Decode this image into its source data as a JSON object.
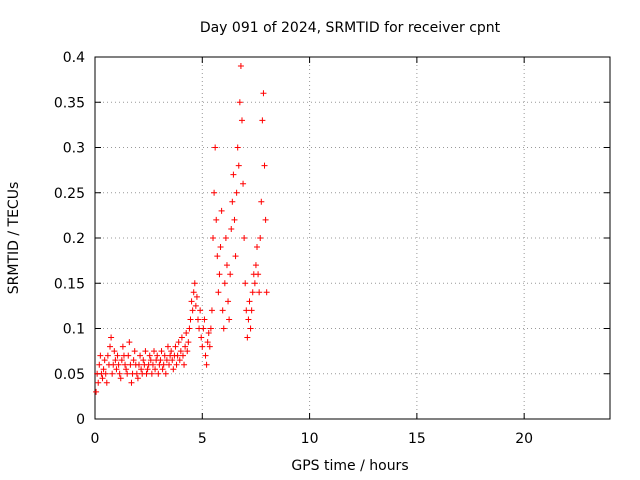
{
  "chart_data": {
    "type": "scatter",
    "title": "Day 091 of 2024, SRMTID for receiver cpnt",
    "xlabel": "GPS time / hours",
    "ylabel": "SRMTID / TECUs",
    "xlim": [
      0,
      24
    ],
    "ylim": [
      0,
      0.4
    ],
    "x_ticks": [
      0,
      5,
      10,
      15,
      20
    ],
    "x_tick_labels": [
      "0",
      "5",
      "10",
      "15",
      "20"
    ],
    "y_ticks": [
      0,
      0.05,
      0.1,
      0.15,
      0.2,
      0.25,
      0.3,
      0.35,
      0.4
    ],
    "y_tick_labels": [
      "0",
      "0.05",
      "0.1",
      "0.15",
      "0.2",
      "0.25",
      "0.3",
      "0.35",
      "0.4"
    ],
    "grid": true,
    "marker": "+",
    "color": "#ff0000",
    "series": [
      {
        "points": [
          [
            0.05,
            0.03
          ],
          [
            0.1,
            0.05
          ],
          [
            0.15,
            0.04
          ],
          [
            0.2,
            0.06
          ],
          [
            0.25,
            0.07
          ],
          [
            0.3,
            0.05
          ],
          [
            0.35,
            0.045
          ],
          [
            0.4,
            0.055
          ],
          [
            0.45,
            0.065
          ],
          [
            0.5,
            0.05
          ],
          [
            0.55,
            0.04
          ],
          [
            0.6,
            0.07
          ],
          [
            0.65,
            0.06
          ],
          [
            0.7,
            0.08
          ],
          [
            0.75,
            0.09
          ],
          [
            0.8,
            0.05
          ],
          [
            0.85,
            0.06
          ],
          [
            0.9,
            0.075
          ],
          [
            0.95,
            0.065
          ],
          [
            1.0,
            0.055
          ],
          [
            1.05,
            0.07
          ],
          [
            1.1,
            0.06
          ],
          [
            1.15,
            0.05
          ],
          [
            1.2,
            0.045
          ],
          [
            1.25,
            0.065
          ],
          [
            1.3,
            0.08
          ],
          [
            1.35,
            0.07
          ],
          [
            1.4,
            0.06
          ],
          [
            1.45,
            0.055
          ],
          [
            1.5,
            0.05
          ],
          [
            1.55,
            0.07
          ],
          [
            1.6,
            0.085
          ],
          [
            1.65,
            0.06
          ],
          [
            1.7,
            0.04
          ],
          [
            1.75,
            0.05
          ],
          [
            1.8,
            0.065
          ],
          [
            1.85,
            0.075
          ],
          [
            1.9,
            0.06
          ],
          [
            1.95,
            0.05
          ],
          [
            2.0,
            0.045
          ],
          [
            2.05,
            0.06
          ],
          [
            2.1,
            0.07
          ],
          [
            2.15,
            0.055
          ],
          [
            2.2,
            0.05
          ],
          [
            2.25,
            0.065
          ],
          [
            2.3,
            0.06
          ],
          [
            2.35,
            0.075
          ],
          [
            2.4,
            0.05
          ],
          [
            2.45,
            0.055
          ],
          [
            2.5,
            0.06
          ],
          [
            2.55,
            0.07
          ],
          [
            2.6,
            0.065
          ],
          [
            2.65,
            0.05
          ],
          [
            2.7,
            0.06
          ],
          [
            2.75,
            0.075
          ],
          [
            2.8,
            0.055
          ],
          [
            2.85,
            0.065
          ],
          [
            2.9,
            0.07
          ],
          [
            2.95,
            0.05
          ],
          [
            3.0,
            0.06
          ],
          [
            3.05,
            0.065
          ],
          [
            3.1,
            0.075
          ],
          [
            3.15,
            0.055
          ],
          [
            3.2,
            0.06
          ],
          [
            3.25,
            0.07
          ],
          [
            3.3,
            0.05
          ],
          [
            3.35,
            0.065
          ],
          [
            3.4,
            0.08
          ],
          [
            3.45,
            0.06
          ],
          [
            3.5,
            0.07
          ],
          [
            3.55,
            0.075
          ],
          [
            3.6,
            0.065
          ],
          [
            3.65,
            0.055
          ],
          [
            3.7,
            0.07
          ],
          [
            3.75,
            0.08
          ],
          [
            3.8,
            0.06
          ],
          [
            3.85,
            0.07
          ],
          [
            3.9,
            0.085
          ],
          [
            3.95,
            0.065
          ],
          [
            4.0,
            0.075
          ],
          [
            4.05,
            0.09
          ],
          [
            4.1,
            0.07
          ],
          [
            4.15,
            0.06
          ],
          [
            4.2,
            0.08
          ],
          [
            4.25,
            0.095
          ],
          [
            4.3,
            0.075
          ],
          [
            4.35,
            0.085
          ],
          [
            4.4,
            0.1
          ],
          [
            4.45,
            0.11
          ],
          [
            4.5,
            0.13
          ],
          [
            4.55,
            0.12
          ],
          [
            4.6,
            0.14
          ],
          [
            4.65,
            0.15
          ],
          [
            4.7,
            0.125
          ],
          [
            4.75,
            0.135
          ],
          [
            4.8,
            0.11
          ],
          [
            4.85,
            0.1
          ],
          [
            4.9,
            0.12
          ],
          [
            4.95,
            0.09
          ],
          [
            5.0,
            0.08
          ],
          [
            5.05,
            0.1
          ],
          [
            5.1,
            0.11
          ],
          [
            5.15,
            0.07
          ],
          [
            5.2,
            0.06
          ],
          [
            5.25,
            0.085
          ],
          [
            5.3,
            0.095
          ],
          [
            5.35,
            0.08
          ],
          [
            5.4,
            0.1
          ],
          [
            5.45,
            0.12
          ],
          [
            5.5,
            0.2
          ],
          [
            5.55,
            0.25
          ],
          [
            5.6,
            0.3
          ],
          [
            5.65,
            0.22
          ],
          [
            5.7,
            0.18
          ],
          [
            5.75,
            0.14
          ],
          [
            5.8,
            0.16
          ],
          [
            5.85,
            0.19
          ],
          [
            5.9,
            0.23
          ],
          [
            5.95,
            0.12
          ],
          [
            6.0,
            0.1
          ],
          [
            6.05,
            0.15
          ],
          [
            6.1,
            0.2
          ],
          [
            6.15,
            0.17
          ],
          [
            6.2,
            0.13
          ],
          [
            6.25,
            0.11
          ],
          [
            6.3,
            0.16
          ],
          [
            6.35,
            0.21
          ],
          [
            6.4,
            0.24
          ],
          [
            6.45,
            0.27
          ],
          [
            6.5,
            0.22
          ],
          [
            6.55,
            0.18
          ],
          [
            6.6,
            0.25
          ],
          [
            6.65,
            0.3
          ],
          [
            6.7,
            0.28
          ],
          [
            6.75,
            0.35
          ],
          [
            6.8,
            0.39
          ],
          [
            6.85,
            0.33
          ],
          [
            6.9,
            0.26
          ],
          [
            6.95,
            0.2
          ],
          [
            7.0,
            0.15
          ],
          [
            7.05,
            0.12
          ],
          [
            7.1,
            0.09
          ],
          [
            7.15,
            0.11
          ],
          [
            7.2,
            0.13
          ],
          [
            7.25,
            0.1
          ],
          [
            7.3,
            0.12
          ],
          [
            7.35,
            0.14
          ],
          [
            7.4,
            0.16
          ],
          [
            7.45,
            0.15
          ],
          [
            7.5,
            0.17
          ],
          [
            7.55,
            0.19
          ],
          [
            7.6,
            0.16
          ],
          [
            7.65,
            0.14
          ],
          [
            7.7,
            0.2
          ],
          [
            7.75,
            0.24
          ],
          [
            7.8,
            0.33
          ],
          [
            7.85,
            0.36
          ],
          [
            7.9,
            0.28
          ],
          [
            7.95,
            0.22
          ],
          [
            8.0,
            0.14
          ]
        ]
      }
    ]
  }
}
